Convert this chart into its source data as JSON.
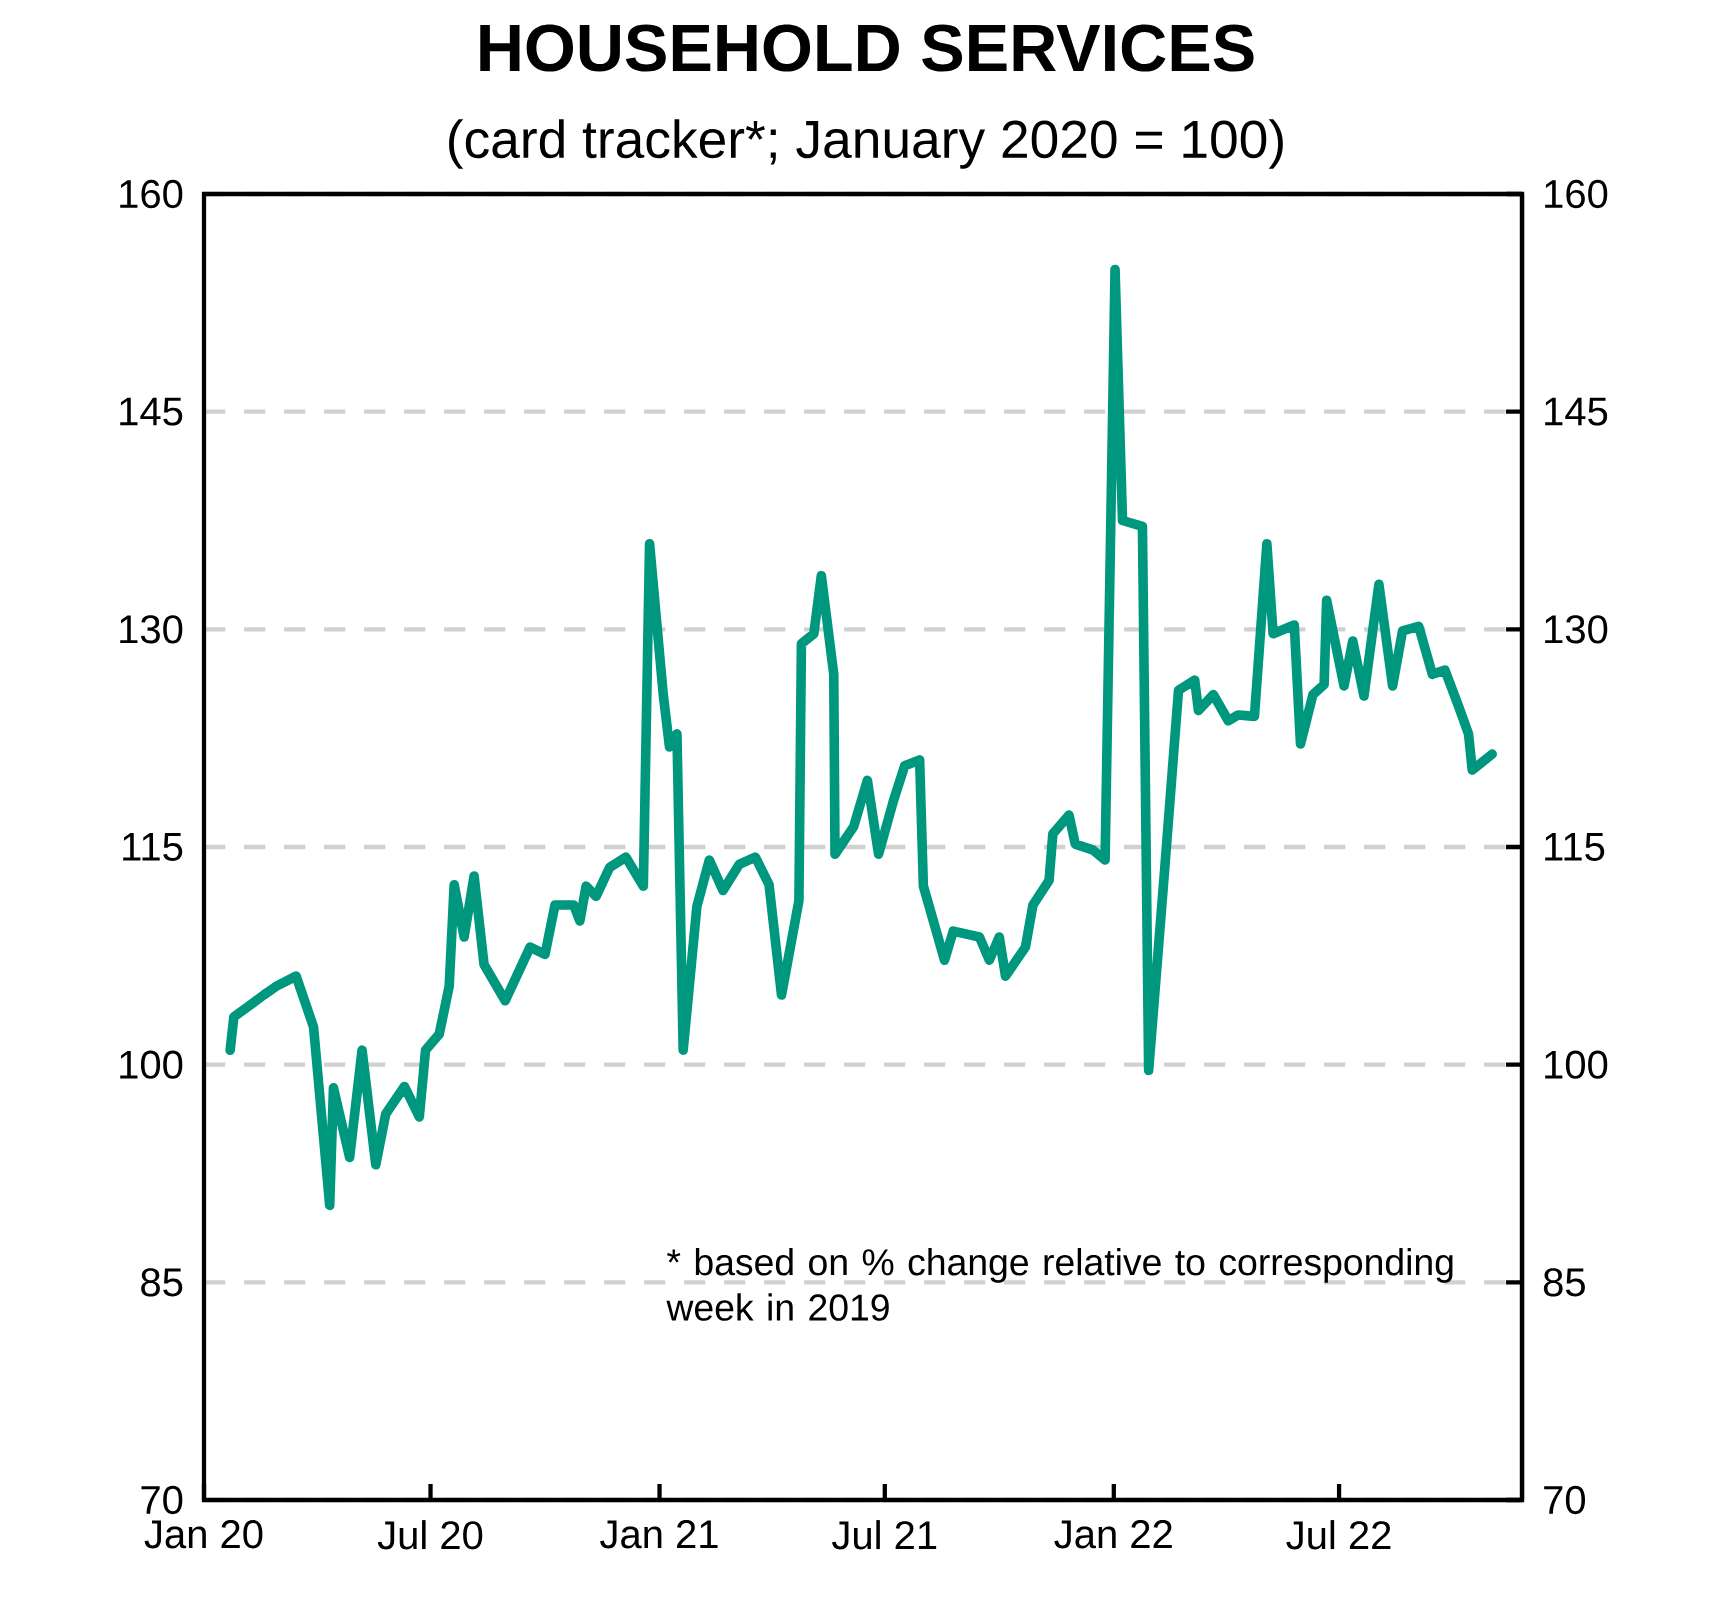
{
  "chart_data": {
    "type": "line",
    "title": "HOUSEHOLD  SERVICES",
    "subtitle": "(card tracker*; January 2020 = 100)",
    "annotations": [
      "*  based on % change  relative to corresponding  week  in 2019"
    ],
    "grid": "y",
    "line_style": "solid",
    "xlim": [
      "2020-01-01",
      "2022-11-25"
    ],
    "xticks": [
      {
        "value": "2020-01-01",
        "label": "Jan 20"
      },
      {
        "value": "2020-07-01",
        "label": "Jul 20"
      },
      {
        "value": "2021-01-01",
        "label": "Jan 21"
      },
      {
        "value": "2021-07-01",
        "label": "Jul 21"
      },
      {
        "value": "2022-01-01",
        "label": "Jan 22"
      },
      {
        "value": "2022-07-01",
        "label": "Jul 22"
      }
    ],
    "ylim": [
      70,
      160
    ],
    "yticks": [
      70,
      85,
      100,
      115,
      130,
      145,
      160
    ],
    "y2lim": [
      70,
      160
    ],
    "y2ticks": [
      70,
      85,
      100,
      115,
      130,
      145,
      160
    ],
    "x": [
      "2020-01-22",
      "2020-01-25",
      "2020-02-07",
      "2020-02-18",
      "2020-02-28",
      "2020-03-15",
      "2020-03-29",
      "2020-04-11",
      "2020-04-14",
      "2020-04-27",
      "2020-05-07",
      "2020-05-18",
      "2020-05-26",
      "2020-06-10",
      "2020-06-22",
      "2020-06-27",
      "2020-07-08",
      "2020-07-16",
      "2020-07-20",
      "2020-07-28",
      "2020-08-05",
      "2020-08-13",
      "2020-08-30",
      "2020-09-19",
      "2020-10-01",
      "2020-10-09",
      "2020-10-24",
      "2020-10-29",
      "2020-11-03",
      "2020-11-11",
      "2020-11-22",
      "2020-12-05",
      "2020-12-19",
      "2020-12-24",
      "2021-01-04",
      "2021-01-09",
      "2021-01-15",
      "2021-01-20",
      "2021-01-31",
      "2021-02-10",
      "2021-02-21",
      "2021-03-06",
      "2021-03-19",
      "2021-03-30",
      "2021-04-09",
      "2021-04-23",
      "2021-04-25",
      "2021-05-05",
      "2021-05-11",
      "2021-05-21",
      "2021-05-22",
      "2021-06-06",
      "2021-06-17",
      "2021-06-26",
      "2021-07-08",
      "2021-07-17",
      "2021-07-29",
      "2021-08-01",
      "2021-08-18",
      "2021-08-25",
      "2021-09-15",
      "2021-09-23",
      "2021-10-01",
      "2021-10-06",
      "2021-10-22",
      "2021-10-28",
      "2021-11-10",
      "2021-11-13",
      "2021-11-26",
      "2021-12-01",
      "2021-12-15",
      "2021-12-25",
      "2022-01-02",
      "2022-01-08",
      "2022-01-24",
      "2022-01-29",
      "2022-02-11",
      "2022-02-22",
      "2022-03-07",
      "2022-03-10",
      "2022-03-22",
      "2022-04-03",
      "2022-04-11",
      "2022-04-24",
      "2022-05-04",
      "2022-05-09",
      "2022-05-26",
      "2022-05-31",
      "2022-06-10",
      "2022-06-19",
      "2022-06-21",
      "2022-07-05",
      "2022-07-12",
      "2022-07-21",
      "2022-08-02",
      "2022-08-13",
      "2022-08-21",
      "2022-09-03",
      "2022-09-14",
      "2022-09-24",
      "2022-10-05",
      "2022-10-13",
      "2022-10-16",
      "2022-11-01"
    ],
    "series": [
      {
        "color": "#00977f",
        "values": [
          101.0,
          103.3,
          104.1,
          104.8,
          105.4,
          106.1,
          102.6,
          90.3,
          98.4,
          93.6,
          101.0,
          93.1,
          96.6,
          98.5,
          96.4,
          101.0,
          102.1,
          105.4,
          112.4,
          108.8,
          113.0,
          106.9,
          104.4,
          108.1,
          107.6,
          111.0,
          111.0,
          109.9,
          112.3,
          111.6,
          113.6,
          114.3,
          112.3,
          135.9,
          125.5,
          121.9,
          122.8,
          101.0,
          110.9,
          114.1,
          112.0,
          113.8,
          114.3,
          112.4,
          104.8,
          111.3,
          129.0,
          129.7,
          133.7,
          126.9,
          114.5,
          116.4,
          119.6,
          114.5,
          118.2,
          120.6,
          121.0,
          112.3,
          107.2,
          109.2,
          108.8,
          107.2,
          108.8,
          106.1,
          108.1,
          111.0,
          112.7,
          115.9,
          117.2,
          115.2,
          114.8,
          114.1,
          154.8,
          137.5,
          137.1,
          99.6,
          113.6,
          125.8,
          126.5,
          124.4,
          125.5,
          123.7,
          124.1,
          124.0,
          135.9,
          129.7,
          130.3,
          122.1,
          125.5,
          126.2,
          132.0,
          126.1,
          129.2,
          125.4,
          133.1,
          126.1,
          129.9,
          130.2,
          126.9,
          127.2,
          124.7,
          122.8,
          120.3,
          121.4
        ]
      }
    ]
  }
}
